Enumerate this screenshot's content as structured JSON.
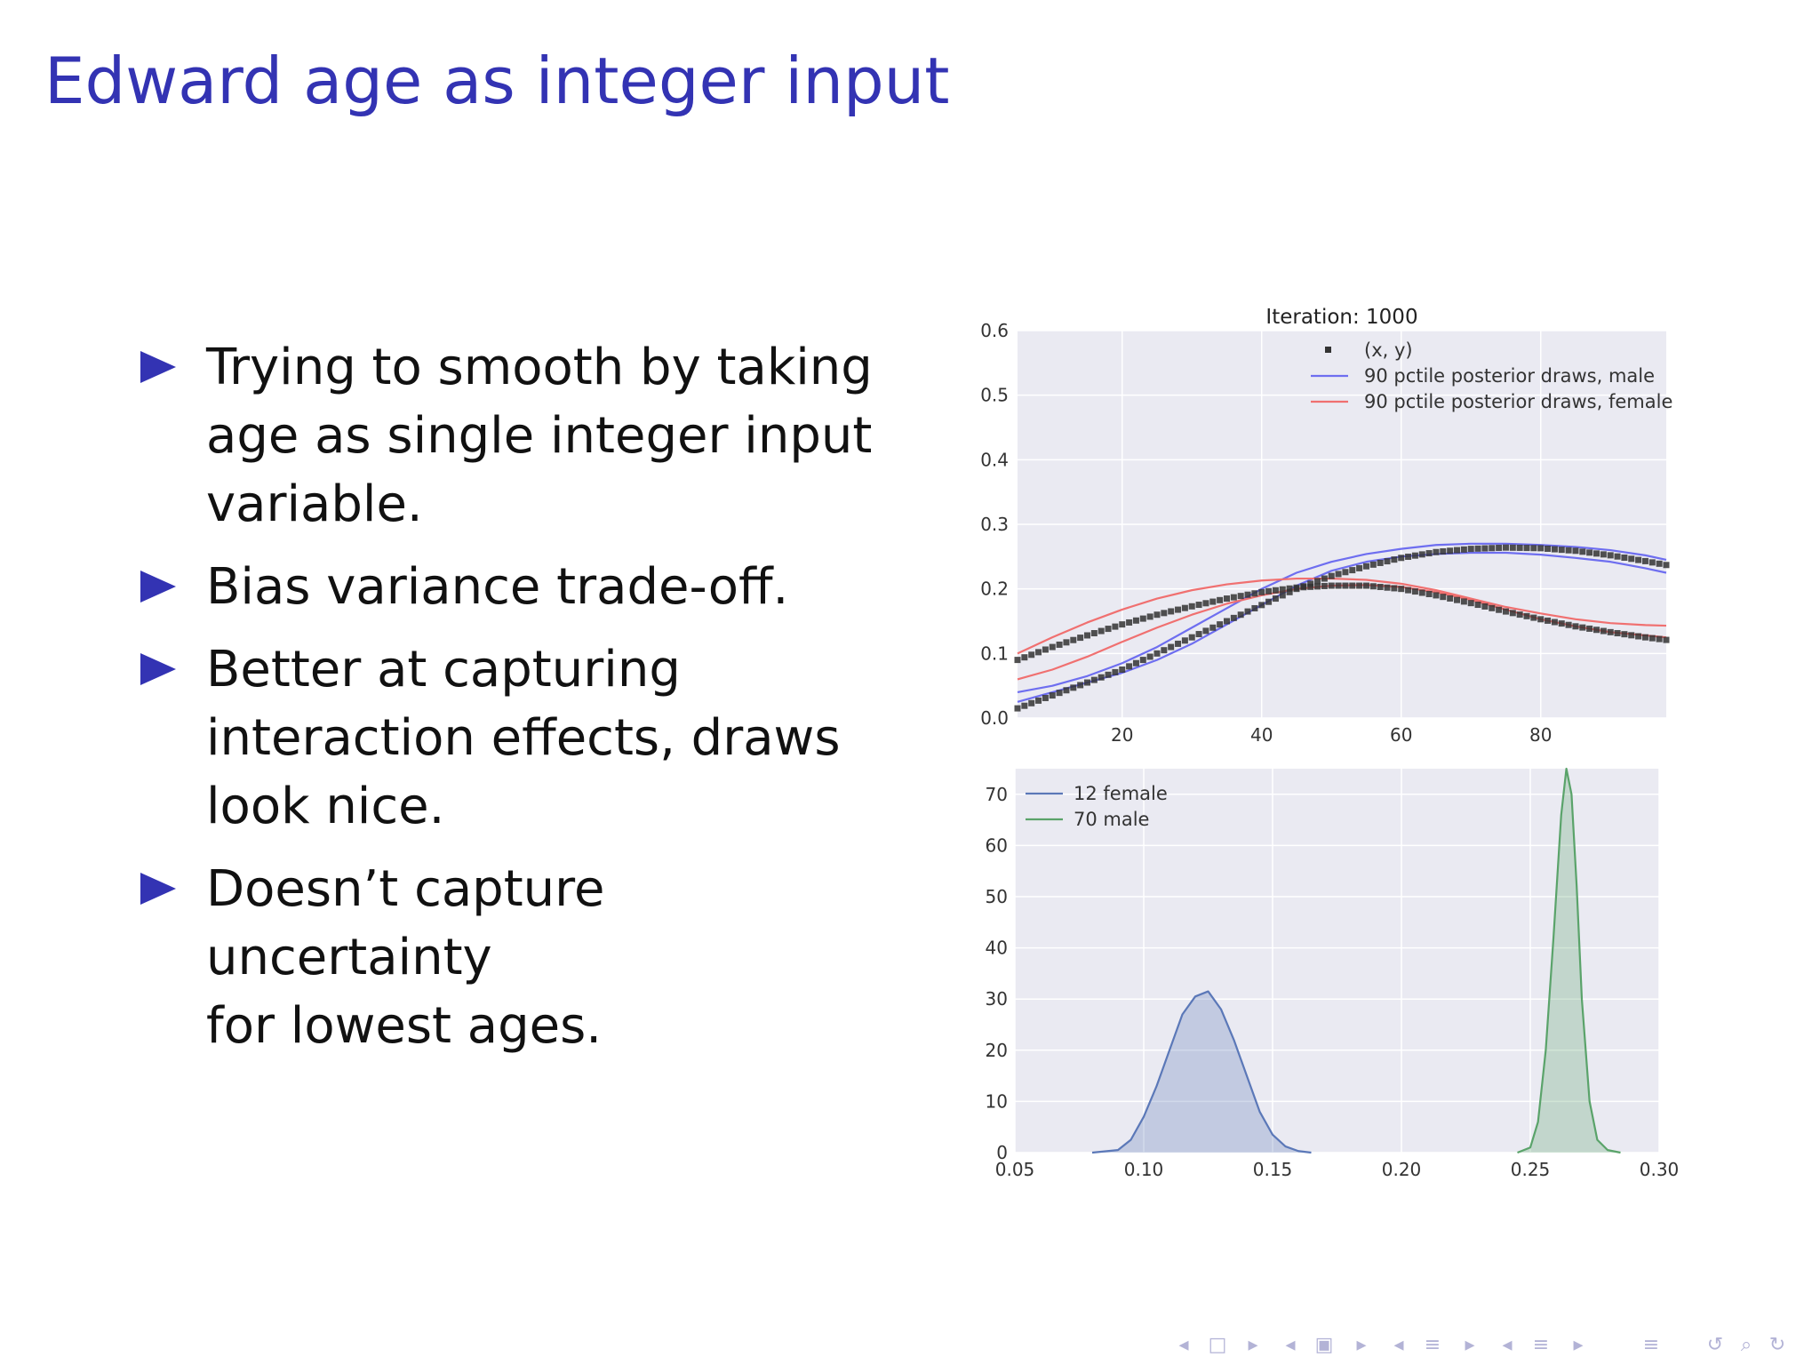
{
  "slide": {
    "title": "Edward age as integer input",
    "bullets": [
      [
        "Trying to smooth by taking",
        "age as single integer input",
        "variable."
      ],
      [
        "Bias variance trade-off."
      ],
      [
        "Better at capturing",
        "interaction effects, draws",
        "look nice."
      ],
      [
        "Doesn’t capture uncertainty",
        "for lowest ages."
      ]
    ]
  },
  "colors": {
    "title": "#3333b3",
    "bullet_marker": "#3333b3",
    "male_line": "#6e6ef0",
    "female_line": "#f07070",
    "kde_female": "#5b78b8",
    "kde_male": "#5aa36a",
    "plot_bg": "#eaeaf2"
  },
  "chart_data": [
    {
      "type": "line",
      "title": "Iteration: 1000",
      "xlim": [
        5,
        98
      ],
      "ylim": [
        0.0,
        0.6
      ],
      "xticks": [
        20,
        40,
        60,
        80
      ],
      "yticks": [
        0.0,
        0.1,
        0.2,
        0.3,
        0.4,
        0.5,
        0.6
      ],
      "grid": true,
      "legend": {
        "placement": "top-center",
        "entries": [
          "(x, y)",
          "90 pctile posterior draws, male",
          "90 pctile posterior draws, female"
        ]
      },
      "points_male": {
        "x": [
          5,
          10,
          15,
          20,
          25,
          30,
          35,
          40,
          45,
          50,
          55,
          60,
          65,
          70,
          75,
          80,
          85,
          90,
          95,
          98
        ],
        "y": [
          0.015,
          0.035,
          0.055,
          0.075,
          0.1,
          0.125,
          0.15,
          0.175,
          0.2,
          0.22,
          0.235,
          0.248,
          0.257,
          0.262,
          0.264,
          0.263,
          0.259,
          0.252,
          0.243,
          0.237
        ]
      },
      "points_female": {
        "x": [
          5,
          10,
          15,
          20,
          25,
          30,
          35,
          40,
          45,
          50,
          55,
          60,
          65,
          70,
          75,
          80,
          85,
          90,
          95,
          98
        ],
        "y": [
          0.09,
          0.11,
          0.128,
          0.145,
          0.16,
          0.173,
          0.185,
          0.195,
          0.202,
          0.205,
          0.205,
          0.2,
          0.19,
          0.178,
          0.165,
          0.153,
          0.142,
          0.133,
          0.125,
          0.121
        ]
      },
      "series": [
        {
          "name": "90 pctile posterior draws, male",
          "x": [
            5,
            10,
            15,
            20,
            25,
            30,
            35,
            40,
            45,
            50,
            55,
            60,
            65,
            70,
            75,
            80,
            85,
            90,
            95,
            98
          ],
          "y": [
            0.04,
            0.05,
            0.065,
            0.085,
            0.11,
            0.14,
            0.17,
            0.2,
            0.225,
            0.242,
            0.254,
            0.262,
            0.268,
            0.27,
            0.27,
            0.268,
            0.265,
            0.26,
            0.252,
            0.245
          ]
        },
        {
          "name": "90 pctile posterior draws, male",
          "x": [
            5,
            10,
            15,
            20,
            25,
            30,
            35,
            40,
            45,
            50,
            55,
            60,
            65,
            70,
            75,
            80,
            85,
            90,
            95,
            98
          ],
          "y": [
            0.025,
            0.04,
            0.055,
            0.07,
            0.09,
            0.115,
            0.145,
            0.175,
            0.205,
            0.228,
            0.242,
            0.25,
            0.254,
            0.256,
            0.256,
            0.253,
            0.248,
            0.242,
            0.232,
            0.225
          ]
        },
        {
          "name": "90 pctile posterior draws, female",
          "x": [
            5,
            10,
            15,
            20,
            25,
            30,
            35,
            40,
            45,
            50,
            55,
            60,
            65,
            70,
            75,
            80,
            85,
            90,
            95,
            98
          ],
          "y": [
            0.1,
            0.125,
            0.148,
            0.168,
            0.185,
            0.198,
            0.207,
            0.213,
            0.216,
            0.216,
            0.214,
            0.208,
            0.198,
            0.185,
            0.172,
            0.162,
            0.153,
            0.147,
            0.144,
            0.143
          ]
        },
        {
          "name": "90 pctile posterior draws, female",
          "x": [
            5,
            10,
            15,
            20,
            25,
            30,
            35,
            40,
            45,
            50,
            55,
            60,
            65,
            70,
            75,
            80,
            85,
            90,
            95,
            98
          ],
          "y": [
            0.06,
            0.075,
            0.095,
            0.118,
            0.14,
            0.16,
            0.177,
            0.19,
            0.2,
            0.205,
            0.206,
            0.203,
            0.195,
            0.183,
            0.168,
            0.153,
            0.142,
            0.133,
            0.128,
            0.125
          ]
        }
      ]
    },
    {
      "type": "area",
      "xlim": [
        0.05,
        0.3
      ],
      "ylim": [
        0,
        75
      ],
      "xticks": [
        0.05,
        0.1,
        0.15,
        0.2,
        0.25,
        0.3
      ],
      "yticks": [
        0,
        10,
        20,
        30,
        40,
        50,
        60,
        70
      ],
      "grid": true,
      "legend": {
        "placement": "top-left"
      },
      "series": [
        {
          "name": "12 female",
          "x": [
            0.08,
            0.09,
            0.095,
            0.1,
            0.105,
            0.11,
            0.115,
            0.12,
            0.125,
            0.13,
            0.135,
            0.14,
            0.145,
            0.15,
            0.155,
            0.16,
            0.165
          ],
          "y": [
            0,
            0.5,
            2.5,
            7,
            13,
            20,
            27,
            30.5,
            31.5,
            28,
            22,
            15,
            8,
            3.5,
            1.2,
            0.3,
            0
          ]
        },
        {
          "name": "70 male",
          "x": [
            0.245,
            0.25,
            0.253,
            0.256,
            0.259,
            0.262,
            0.264,
            0.266,
            0.268,
            0.27,
            0.273,
            0.276,
            0.28,
            0.285
          ],
          "y": [
            0,
            1,
            6,
            20,
            42,
            66,
            75,
            70,
            52,
            30,
            10,
            2.5,
            0.5,
            0
          ]
        }
      ]
    }
  ],
  "nav": {
    "glyphs": [
      "◂",
      "□",
      "▸",
      "◂",
      "▣",
      "▸",
      "◂",
      "≡",
      "▸",
      "◂",
      "≡",
      "▸",
      "≡",
      "↺",
      "⌕",
      "↻"
    ]
  }
}
